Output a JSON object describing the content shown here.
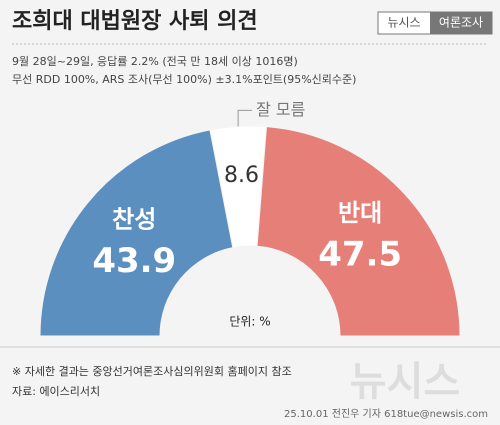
{
  "chart_data": {
    "type": "half-donut",
    "title": "조희대 대법원장 사퇴 의견",
    "badge": [
      "뉴시스",
      "여론조사"
    ],
    "subtitle": [
      "9월 28일~29일, 응답률 2.2% (전국 만 18세 이상 1016명)",
      "무선 RDD 100%, ARS 조사(무선 100%) ±3.1%포인트(95%신뢰수준)"
    ],
    "categories": [
      "찬성",
      "잘 모름",
      "반대"
    ],
    "values": [
      43.9,
      8.6,
      47.5
    ],
    "colors": [
      "#5b8fc0",
      "#ffffff",
      "#e57f78"
    ],
    "unit": "단위: %",
    "notes": [
      "※ 자세한 결과는 중앙선거여론조사심의위원회 홈페이지 참조",
      "자료: 에이스리서치"
    ],
    "credit": "25.10.01 전진우 기자 618tue@newsis.com",
    "watermark": "뉴시스"
  }
}
